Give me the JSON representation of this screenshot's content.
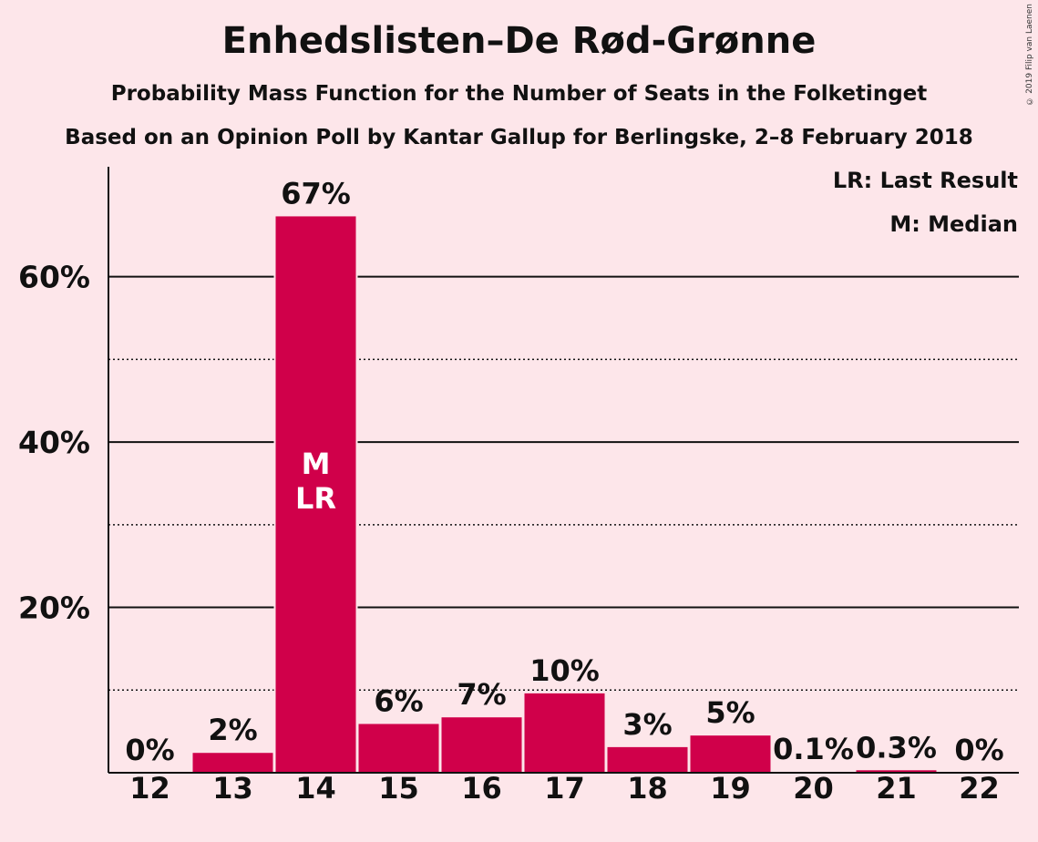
{
  "title": "Enhedslisten–De Rød-Grønne",
  "subtitle": "Probability Mass Function for the Number of Seats in the Folketinget",
  "subtitle2": "Based on an Opinion Poll by Kantar Gallup for Berlingske, 2–8 February 2018",
  "copyright": "© 2019 Filip van Laenen",
  "legend": {
    "lr": "LR: Last Result",
    "m": "M: Median"
  },
  "colors": {
    "bar": "#d0004a",
    "background": "#fde6ea"
  },
  "chart_data": {
    "type": "bar",
    "categories": [
      "12",
      "13",
      "14",
      "15",
      "16",
      "17",
      "18",
      "19",
      "20",
      "21",
      "22"
    ],
    "values": [
      0,
      2.4,
      67.3,
      5.9,
      6.7,
      9.6,
      3.1,
      4.5,
      0.1,
      0.3,
      0
    ],
    "value_labels": [
      "0%",
      "2%",
      "67%",
      "6%",
      "7%",
      "10%",
      "3%",
      "5%",
      "0.1%",
      "0.3%",
      "0%"
    ],
    "y_ticks": [
      "20%",
      "40%",
      "60%"
    ],
    "y_tick_values": [
      20,
      40,
      60
    ],
    "y_minor_gridlines": [
      10,
      30,
      50
    ],
    "ylim": [
      0,
      73.3
    ],
    "median_index": 2,
    "last_result_index": 2,
    "median_label": "M",
    "last_result_label": "LR",
    "legend_position": "top-right"
  }
}
